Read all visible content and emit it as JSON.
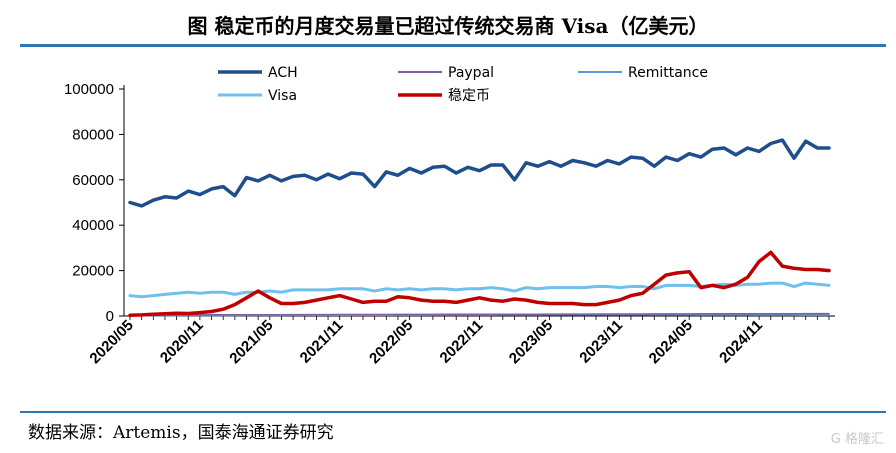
{
  "title": "图  稳定币的月度交易量已超过传统交易商 Visa（亿美元）",
  "source": "数据来源：Artemis，国泰海通证券研究",
  "watermark": "G 格隆汇",
  "chart_data": {
    "type": "line",
    "title": "",
    "xlabel": "",
    "ylabel": "",
    "ylim": [
      0,
      100000
    ],
    "yticks": [
      0,
      20000,
      40000,
      60000,
      80000,
      100000
    ],
    "grid": false,
    "legend_placement": "top",
    "x": [
      "2020/05",
      "2020/06",
      "2020/07",
      "2020/08",
      "2020/09",
      "2020/10",
      "2020/11",
      "2020/12",
      "2021/01",
      "2021/02",
      "2021/03",
      "2021/04",
      "2021/05",
      "2021/06",
      "2021/07",
      "2021/08",
      "2021/09",
      "2021/10",
      "2021/11",
      "2021/12",
      "2022/01",
      "2022/02",
      "2022/03",
      "2022/04",
      "2022/05",
      "2022/06",
      "2022/07",
      "2022/08",
      "2022/09",
      "2022/10",
      "2022/11",
      "2022/12",
      "2023/01",
      "2023/02",
      "2023/03",
      "2023/04",
      "2023/05",
      "2023/06",
      "2023/07",
      "2023/08",
      "2023/09",
      "2023/10",
      "2023/11",
      "2023/12",
      "2024/01",
      "2024/02",
      "2024/03",
      "2024/04",
      "2024/05",
      "2024/06",
      "2024/07",
      "2024/08",
      "2024/09",
      "2024/10",
      "2024/11",
      "2024/12",
      "2025/01",
      "2025/02",
      "2025/03",
      "2025/04",
      "2025/05"
    ],
    "xtick_labels": [
      "2020/05",
      "2020/11",
      "2021/05",
      "2021/11",
      "2022/05",
      "2022/11",
      "2023/05",
      "2023/11",
      "2024/05",
      "2024/11"
    ],
    "series": [
      {
        "name": "ACH",
        "color": "#1f4e8c",
        "width": 3.5,
        "values": [
          50000,
          48500,
          51000,
          52500,
          52000,
          55000,
          53500,
          56000,
          57000,
          53000,
          61000,
          59500,
          62000,
          59500,
          61500,
          62000,
          60000,
          62500,
          60500,
          63000,
          62500,
          57000,
          63500,
          62000,
          65000,
          63000,
          65500,
          66000,
          63000,
          65500,
          64000,
          66500,
          66500,
          60000,
          67500,
          66000,
          68000,
          66000,
          68500,
          67500,
          66000,
          68500,
          67000,
          70000,
          69500,
          66000,
          70000,
          68500,
          71500,
          70000,
          73500,
          74000,
          71000,
          74000,
          72500,
          76000,
          77500,
          69500,
          77000,
          74000,
          74000
        ]
      },
      {
        "name": "Paypal",
        "color": "#7b5ea7",
        "width": 1.5,
        "values": [
          400,
          420,
          440,
          450,
          460,
          480,
          500,
          510,
          530,
          540,
          560,
          570,
          580,
          590,
          600,
          610,
          620,
          630,
          640,
          650,
          660,
          670,
          680,
          690,
          700,
          710,
          720,
          730,
          740,
          750,
          760,
          770,
          780,
          790,
          800,
          810,
          820,
          830,
          840,
          850,
          860,
          870,
          880,
          890,
          900,
          910,
          920,
          930,
          940,
          950,
          960,
          970,
          980,
          990,
          1000,
          1010,
          1020,
          1030,
          1040,
          1050,
          1060
        ]
      },
      {
        "name": "Remittance",
        "color": "#5b9bd5",
        "width": 1.5,
        "values": [
          150,
          160,
          170,
          180,
          190,
          200,
          210,
          220,
          230,
          240,
          250,
          260,
          270,
          280,
          290,
          300,
          310,
          320,
          330,
          340,
          350,
          360,
          370,
          380,
          390,
          400,
          410,
          420,
          430,
          440,
          450,
          460,
          470,
          480,
          490,
          500,
          510,
          520,
          530,
          540,
          550,
          560,
          570,
          580,
          590,
          600,
          610,
          620,
          630,
          640,
          650,
          660,
          670,
          680,
          690,
          700,
          710,
          720,
          730,
          740,
          750
        ]
      },
      {
        "name": "Visa",
        "color": "#6ec1ec",
        "width": 3,
        "values": [
          9000,
          8500,
          9000,
          9500,
          10000,
          10500,
          10000,
          10500,
          10500,
          9500,
          10500,
          10500,
          11000,
          10500,
          11500,
          11500,
          11500,
          11500,
          12000,
          12000,
          12000,
          11000,
          12000,
          11500,
          12000,
          11500,
          12000,
          12000,
          11500,
          12000,
          12000,
          12500,
          12000,
          11000,
          12500,
          12000,
          12500,
          12500,
          12500,
          12500,
          13000,
          13000,
          12500,
          13000,
          13000,
          12000,
          13500,
          13500,
          13500,
          13000,
          13500,
          14000,
          13500,
          14000,
          14000,
          14500,
          14500,
          13000,
          14500,
          14000,
          13500
        ]
      },
      {
        "name": "稳定币",
        "color": "#c00000",
        "width": 3.5,
        "values": [
          300,
          500,
          800,
          1000,
          1200,
          1100,
          1500,
          2000,
          3000,
          5000,
          8000,
          11000,
          8000,
          5500,
          5500,
          6000,
          7000,
          8000,
          9000,
          7500,
          6000,
          6500,
          6500,
          8500,
          8000,
          7000,
          6500,
          6500,
          6000,
          7000,
          8000,
          7000,
          6500,
          7500,
          7000,
          6000,
          5500,
          5500,
          5500,
          5000,
          5000,
          6000,
          7000,
          9000,
          10000,
          14000,
          18000,
          19000,
          19500,
          12500,
          13500,
          12500,
          14000,
          17000,
          24000,
          28000,
          22000,
          21000,
          20500,
          20500,
          20000
        ]
      }
    ]
  }
}
